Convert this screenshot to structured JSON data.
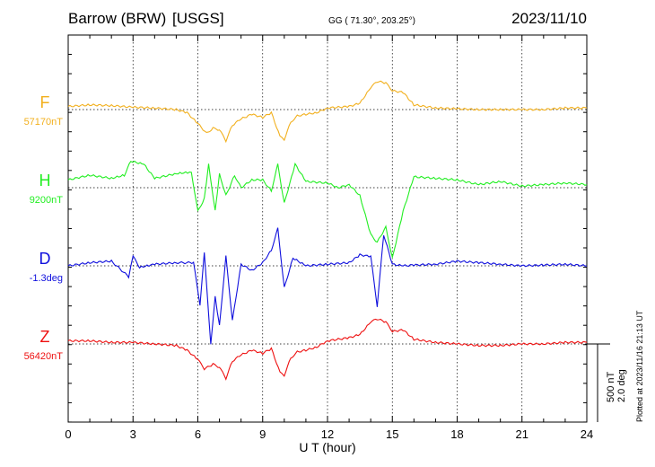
{
  "header": {
    "station": "Barrow (BRW)",
    "source": "[USGS]",
    "coords": "GG ( 71.30°, 203.25°)",
    "date": "2023/11/10"
  },
  "plotted_note": "Plotted at 2023/11/16 21:13 UT",
  "scale_bar": {
    "line1": "500 nT",
    "line2": "2.0 deg"
  },
  "colors": {
    "F": "#f2b01e",
    "H": "#22ee22",
    "D": "#1010dd",
    "Z": "#ee1111"
  },
  "chart_data": {
    "type": "line",
    "title": "Barrow (BRW) [USGS]",
    "xlabel": "U T (hour)",
    "ylabel": "",
    "xlim": [
      0,
      24
    ],
    "xticks": [
      "0",
      "3",
      "6",
      "9",
      "12",
      "15",
      "18",
      "21",
      "24"
    ],
    "grid": true,
    "scale_nT_per_bar": 500,
    "series": [
      {
        "name": "F",
        "baseline_label": "57170nT",
        "x": [
          0,
          1,
          2,
          3,
          4,
          5,
          5.5,
          6,
          6.4,
          6.7,
          7,
          7.3,
          7.6,
          8,
          8.5,
          9,
          9.4,
          9.8,
          10,
          10.3,
          10.6,
          11,
          11.5,
          12,
          13,
          13.5,
          14,
          14.3,
          14.7,
          15,
          15.5,
          16,
          17,
          18,
          19,
          20,
          21,
          22,
          23,
          24
        ],
        "values": [
          20,
          30,
          25,
          15,
          10,
          0,
          -20,
          -90,
          -150,
          -120,
          -130,
          -200,
          -100,
          -60,
          -30,
          -50,
          -20,
          -170,
          -190,
          -80,
          -40,
          -30,
          -20,
          10,
          20,
          40,
          140,
          180,
          170,
          120,
          110,
          30,
          10,
          5,
          0,
          0,
          0,
          0,
          10,
          10
        ]
      },
      {
        "name": "H",
        "baseline_label": "9200nT",
        "x": [
          0,
          1,
          2,
          2.6,
          2.9,
          3.5,
          4,
          5,
          5.7,
          6,
          6.3,
          6.5,
          6.8,
          7,
          7.3,
          7.7,
          8,
          8.5,
          9,
          9.4,
          9.7,
          10,
          10.5,
          11,
          12,
          12.5,
          13,
          13.5,
          14,
          14.3,
          14.7,
          15,
          15.5,
          16,
          17,
          18,
          19,
          20,
          21,
          22,
          23,
          24
        ],
        "values": [
          50,
          80,
          60,
          80,
          170,
          150,
          60,
          90,
          100,
          -150,
          -70,
          150,
          -150,
          90,
          -50,
          80,
          0,
          50,
          50,
          -20,
          150,
          -100,
          150,
          40,
          30,
          0,
          20,
          -50,
          -300,
          -350,
          -250,
          -450,
          -150,
          70,
          60,
          50,
          20,
          40,
          10,
          20,
          30,
          20
        ]
      },
      {
        "name": "D",
        "baseline_label": "-1.3deg",
        "x": [
          0,
          1,
          2,
          2.8,
          3,
          3.3,
          4,
          5,
          5.8,
          6.1,
          6.3,
          6.6,
          6.8,
          7,
          7.3,
          7.6,
          8,
          8.5,
          9,
          9.4,
          9.7,
          10,
          10.4,
          11,
          12,
          13,
          13.5,
          14,
          14.3,
          14.6,
          15,
          15.5,
          16,
          17,
          18,
          19,
          20,
          21,
          22,
          23,
          24
        ],
        "values": [
          0,
          20,
          30,
          -70,
          60,
          -10,
          10,
          20,
          20,
          -250,
          80,
          -500,
          -200,
          -380,
          60,
          -350,
          10,
          -30,
          20,
          100,
          240,
          -140,
          50,
          0,
          10,
          20,
          70,
          60,
          -260,
          200,
          10,
          0,
          5,
          10,
          30,
          20,
          10,
          0,
          5,
          10,
          0
        ]
      },
      {
        "name": "Z",
        "baseline_label": "56420nT",
        "x": [
          0,
          1,
          2,
          3,
          4,
          5,
          5.5,
          6,
          6.3,
          6.7,
          7,
          7.3,
          7.6,
          8,
          8.5,
          9,
          9.4,
          9.8,
          10,
          10.3,
          10.6,
          11,
          11.5,
          12,
          13,
          13.5,
          14,
          14.3,
          14.7,
          15,
          15.5,
          16,
          17,
          18,
          19,
          20,
          21,
          22,
          23,
          24
        ],
        "values": [
          20,
          20,
          10,
          10,
          0,
          -10,
          -40,
          -100,
          -160,
          -130,
          -150,
          -220,
          -110,
          -70,
          -40,
          -60,
          -30,
          -180,
          -200,
          -90,
          -50,
          -40,
          -20,
          20,
          40,
          60,
          140,
          160,
          140,
          80,
          90,
          30,
          10,
          0,
          -10,
          -10,
          0,
          0,
          10,
          10
        ]
      }
    ]
  }
}
